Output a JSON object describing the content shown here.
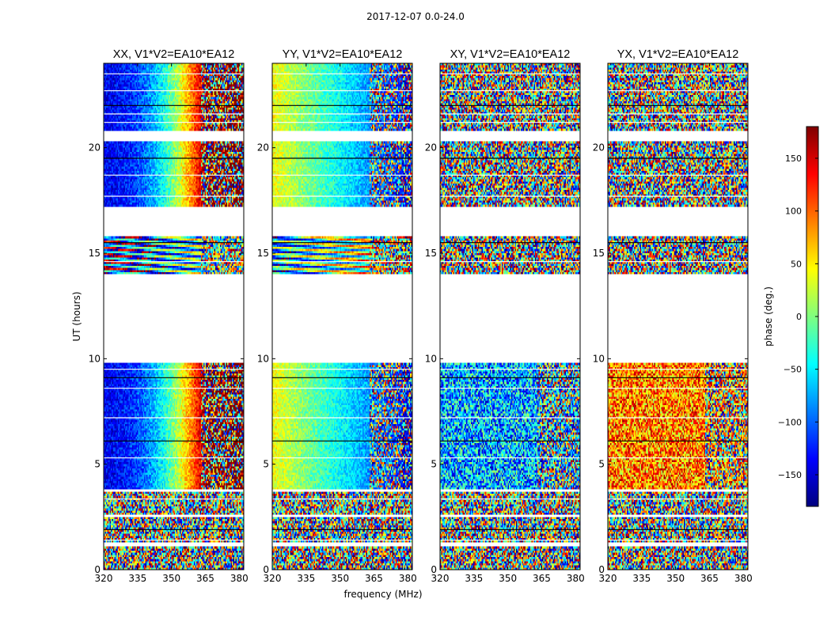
{
  "chart_data": {
    "type": "heatmap",
    "title": "2017-12-07 0.0-24.0",
    "xlabel": "frequency (MHz)",
    "ylabel": "UT (hours)",
    "xlim": [
      320,
      382
    ],
    "ylim": [
      0,
      24
    ],
    "xticks": [
      320,
      335,
      350,
      365,
      380
    ],
    "yticks": [
      0,
      5,
      10,
      15,
      20
    ],
    "panels": [
      {
        "title": "XX, V1*V2=EA10*EA12",
        "pattern": "gradient_xx"
      },
      {
        "title": "YY, V1*V2=EA10*EA12",
        "pattern": "gradient_yy"
      },
      {
        "title": "XY, V1*V2=EA10*EA12",
        "pattern": "noise_blue"
      },
      {
        "title": "YX, V1*V2=EA10*EA12",
        "pattern": "noise_red"
      }
    ],
    "data_bands_ut": [
      [
        0,
        1.1
      ],
      [
        1.3,
        2.45
      ],
      [
        2.6,
        3.65
      ],
      [
        3.85,
        9.8
      ],
      [
        14.0,
        15.8
      ],
      [
        17.2,
        18.0
      ],
      [
        18.0,
        20.3
      ],
      [
        20.8,
        24.0
      ]
    ],
    "flag_lines_ut": [
      1.4,
      1.9,
      3.35,
      5.3,
      6.1,
      7.2,
      8.6,
      9.1,
      9.5,
      14.6,
      15.5,
      17.7,
      18.7,
      19.5,
      21.2,
      21.6,
      22.0,
      22.7,
      23.5
    ],
    "colorbar": {
      "label": "phase (deg.)",
      "range": [
        -180,
        180
      ],
      "ticks": [
        150,
        100,
        50,
        0,
        -50,
        -100,
        -150
      ],
      "tick_labels": [
        "150",
        "100",
        "50",
        "0",
        "−50",
        "−100",
        "−150"
      ],
      "colormap": [
        "#00007f",
        "#0000ff",
        "#007fff",
        "#00ffff",
        "#7fff7f",
        "#ffff00",
        "#ff7f00",
        "#ff0000",
        "#7f0000"
      ]
    }
  }
}
